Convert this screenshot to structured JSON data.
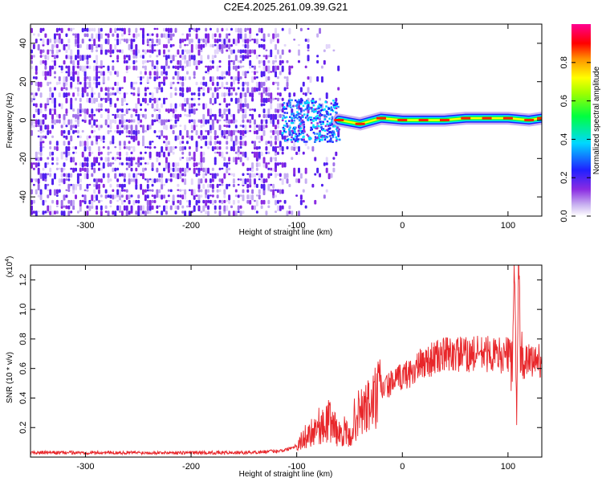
{
  "chart_data": [
    {
      "type": "heatmap",
      "title": "C2E4.2025.261.09.39.G21",
      "xlabel": "Height of straight line (km)",
      "ylabel": "Frequency (Hz)",
      "xlim": [
        -352,
        132
      ],
      "ylim": [
        -50,
        50
      ],
      "xticks": [
        "-300",
        "-200",
        "-100",
        "0",
        "100"
      ],
      "xtick_values": [
        -300,
        -200,
        -100,
        0,
        100
      ],
      "yticks": [
        "-40",
        "-20",
        "0",
        "20",
        "40"
      ],
      "ytick_values": [
        -40,
        -20,
        0,
        20,
        40
      ],
      "colorbar": {
        "label": "Normalized spectral amplitude",
        "range": [
          0,
          1
        ],
        "ticks": [
          "0.0",
          "0.2",
          "0.4",
          "0.6",
          "0.8"
        ],
        "tick_values": [
          0.0,
          0.2,
          0.4,
          0.6,
          0.8
        ]
      },
      "ridge_points": [
        {
          "x": -120,
          "y": 0
        },
        {
          "x": -100,
          "y": -2
        },
        {
          "x": -80,
          "y": 1
        },
        {
          "x": -60,
          "y": 0
        },
        {
          "x": -40,
          "y": -2
        },
        {
          "x": -20,
          "y": 1
        },
        {
          "x": 0,
          "y": 0
        },
        {
          "x": 20,
          "y": 0
        },
        {
          "x": 40,
          "y": 0
        },
        {
          "x": 60,
          "y": 1
        },
        {
          "x": 80,
          "y": 1
        },
        {
          "x": 100,
          "y": 1
        },
        {
          "x": 120,
          "y": 0
        },
        {
          "x": 132,
          "y": 1
        }
      ],
      "colors": [
        "#ffffff",
        "#d6c4f4",
        "#8a2be2",
        "#1e1eff",
        "#00e5ff",
        "#00ff00",
        "#ffff00",
        "#ff8800",
        "#ff0000",
        "#ff00aa"
      ]
    },
    {
      "type": "line",
      "title": "",
      "xlabel": "Height of straight line (km)",
      "ylabel": "SNR (10 * v/v)",
      "scale_label": "(x10^4)",
      "scale_base": "(x10",
      "scale_exp": "4",
      "xlim": [
        -352,
        132
      ],
      "ylim": [
        0,
        1.3
      ],
      "xticks": [
        "-300",
        "-200",
        "-100",
        "0",
        "100"
      ],
      "xtick_values": [
        -300,
        -200,
        -100,
        0,
        100
      ],
      "yticks": [
        "0.2",
        "0.4",
        "0.6",
        "0.8",
        "1.0",
        "1.2"
      ],
      "ytick_values": [
        0.2,
        0.4,
        0.6,
        0.8,
        1.0,
        1.2
      ],
      "series": [
        {
          "name": "SNR",
          "color": "#e8262a",
          "x": [
            -352,
            -300,
            -250,
            -200,
            -150,
            -120,
            -110,
            -100,
            -90,
            -85,
            -80,
            -75,
            -70,
            -65,
            -60,
            -55,
            -50,
            -45,
            -40,
            -35,
            -30,
            -25,
            -20,
            -15,
            -10,
            -5,
            0,
            10,
            20,
            30,
            40,
            50,
            60,
            70,
            80,
            90,
            100,
            104,
            106,
            108,
            110,
            112,
            120,
            132
          ],
          "y": [
            0.03,
            0.03,
            0.03,
            0.03,
            0.03,
            0.04,
            0.05,
            0.08,
            0.15,
            0.18,
            0.22,
            0.2,
            0.25,
            0.22,
            0.15,
            0.18,
            0.12,
            0.26,
            0.3,
            0.32,
            0.35,
            0.4,
            0.45,
            0.48,
            0.5,
            0.52,
            0.55,
            0.58,
            0.64,
            0.67,
            0.69,
            0.7,
            0.69,
            0.7,
            0.7,
            0.69,
            0.69,
            0.7,
            1.25,
            0.35,
            1.28,
            0.62,
            0.65,
            0.66
          ]
        }
      ]
    }
  ]
}
